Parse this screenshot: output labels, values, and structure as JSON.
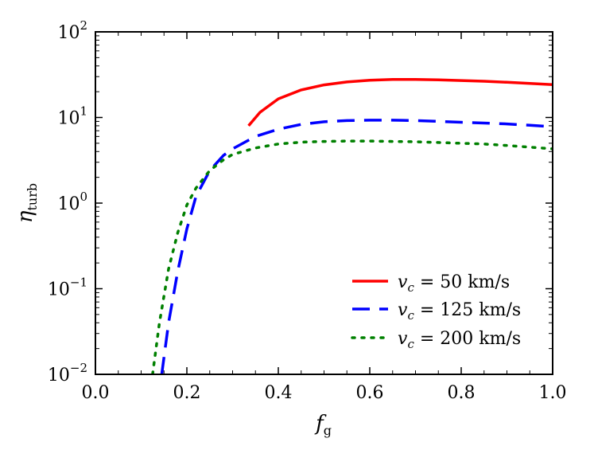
{
  "chart_data": {
    "type": "line",
    "title": "",
    "xlabel": {
      "main": "f",
      "sub": "g"
    },
    "ylabel": {
      "main": "η",
      "sub": "turb"
    },
    "xlim": [
      0.0,
      1.0
    ],
    "ylim": [
      0.01,
      100
    ],
    "yscale": "log",
    "grid": false,
    "legend_position": "lower-right",
    "x_ticks": [
      {
        "value": 0.0,
        "label": "0.0"
      },
      {
        "value": 0.2,
        "label": "0.2"
      },
      {
        "value": 0.4,
        "label": "0.4"
      },
      {
        "value": 0.6,
        "label": "0.6"
      },
      {
        "value": 0.8,
        "label": "0.8"
      },
      {
        "value": 1.0,
        "label": "1.0"
      }
    ],
    "y_ticks": [
      {
        "value": 0.01,
        "base": "10",
        "exp": "−2"
      },
      {
        "value": 0.1,
        "base": "10",
        "exp": "−1"
      },
      {
        "value": 1,
        "base": "10",
        "exp": "0"
      },
      {
        "value": 10,
        "base": "10",
        "exp": "1"
      },
      {
        "value": 100,
        "base": "10",
        "exp": "2"
      }
    ],
    "series": [
      {
        "name": "v_c = 50 km/s",
        "legend": {
          "var": "v",
          "sub": "c",
          "rest": " = 50 km/s"
        },
        "color": "#ff0000",
        "style": "solid",
        "x": [
          0.335,
          0.36,
          0.4,
          0.45,
          0.5,
          0.55,
          0.6,
          0.65,
          0.7,
          0.75,
          0.8,
          0.85,
          0.9,
          0.95,
          1.0
        ],
        "y": [
          8.0,
          11.5,
          16.5,
          21.0,
          24.0,
          26.0,
          27.2,
          27.8,
          27.8,
          27.5,
          27.0,
          26.5,
          25.8,
          25.0,
          24.2
        ]
      },
      {
        "name": "v_c = 125 km/s",
        "legend": {
          "var": "v",
          "sub": "c",
          "rest": " = 125 km/s"
        },
        "color": "#0000ff",
        "style": "dashed",
        "x": [
          0.145,
          0.16,
          0.18,
          0.2,
          0.22,
          0.25,
          0.28,
          0.3,
          0.35,
          0.4,
          0.45,
          0.5,
          0.55,
          0.6,
          0.65,
          0.7,
          0.75,
          0.8,
          0.85,
          0.9,
          0.95,
          1.0
        ],
        "y": [
          0.01,
          0.04,
          0.16,
          0.5,
          1.2,
          2.4,
          3.6,
          4.3,
          6.0,
          7.3,
          8.3,
          8.9,
          9.2,
          9.3,
          9.3,
          9.2,
          9.0,
          8.8,
          8.6,
          8.4,
          8.1,
          7.8
        ]
      },
      {
        "name": "v_c = 200 km/s",
        "legend": {
          "var": "v",
          "sub": "c",
          "rest": " = 200 km/s"
        },
        "color": "#008000",
        "style": "dotted",
        "x": [
          0.125,
          0.14,
          0.16,
          0.18,
          0.2,
          0.22,
          0.25,
          0.28,
          0.3,
          0.35,
          0.4,
          0.45,
          0.5,
          0.55,
          0.6,
          0.65,
          0.7,
          0.75,
          0.8,
          0.85,
          0.9,
          0.95,
          1.0
        ],
        "y": [
          0.01,
          0.04,
          0.17,
          0.45,
          0.95,
          1.5,
          2.4,
          3.2,
          3.7,
          4.4,
          4.9,
          5.15,
          5.25,
          5.3,
          5.3,
          5.25,
          5.2,
          5.1,
          5.0,
          4.9,
          4.7,
          4.5,
          4.3
        ]
      }
    ]
  }
}
